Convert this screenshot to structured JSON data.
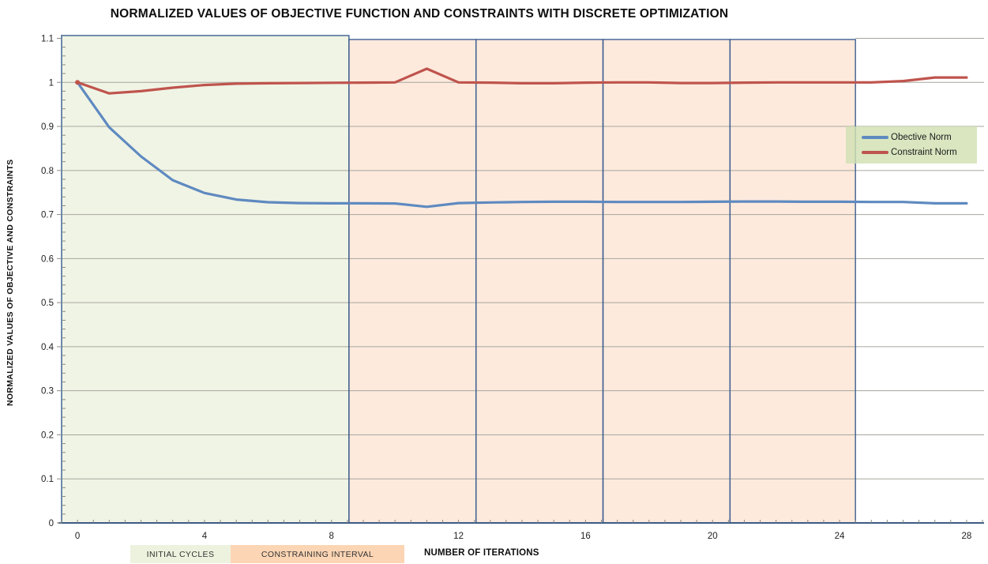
{
  "chart_data": {
    "type": "line",
    "title": "NORMALIZED VALUES OF OBJECTIVE FUNCTION AND CONSTRAINTS WITH DISCRETE OPTIMIZATION",
    "xlabel": "NUMBER OF ITERATIONS",
    "ylabel": "NORMALIZED VALUES OF OBJECTIVE AND CONSTRAINTS",
    "x": [
      0,
      1,
      2,
      3,
      4,
      5,
      6,
      7,
      8,
      9,
      10,
      11,
      12,
      13,
      14,
      15,
      16,
      17,
      18,
      19,
      20,
      21,
      22,
      23,
      24,
      25,
      26,
      27,
      28
    ],
    "series": [
      {
        "name": "Obective Norm",
        "color": "#5f8ac0",
        "values": [
          1.0,
          0.898,
          0.832,
          0.778,
          0.749,
          0.734,
          0.728,
          0.726,
          0.7255,
          0.7255,
          0.725,
          0.7175,
          0.726,
          0.7275,
          0.7285,
          0.729,
          0.729,
          0.7285,
          0.7285,
          0.7285,
          0.729,
          0.7295,
          0.7295,
          0.729,
          0.729,
          0.7285,
          0.7285,
          0.7255,
          0.7255
        ]
      },
      {
        "name": "Constraint Norm",
        "color": "#bf544d",
        "values": [
          1.0,
          0.975,
          0.98,
          0.988,
          0.994,
          0.997,
          0.998,
          0.9985,
          0.999,
          0.9995,
          1.0,
          1.031,
          1.0,
          0.9995,
          0.998,
          0.998,
          0.9995,
          1.0,
          1.0,
          0.9985,
          0.9985,
          0.9995,
          1.0,
          1.0,
          1.0,
          1.0,
          1.003,
          1.011,
          1.011
        ]
      }
    ],
    "xlim": [
      -0.5,
      28.55
    ],
    "ylim": [
      0,
      1.1
    ],
    "x_ticks": [
      "0",
      "4",
      "8",
      "12",
      "16",
      "20",
      "24",
      "28"
    ],
    "x_tick_values": [
      0,
      4,
      8,
      12,
      16,
      20,
      24,
      28
    ],
    "y_ticks": [
      "0",
      "0.1",
      "0.2",
      "0.3",
      "0.4",
      "0.5",
      "0.6",
      "0.7",
      "0.8",
      "0.9",
      "1",
      "1.1"
    ],
    "y_tick_values": [
      0,
      0.1,
      0.2,
      0.3,
      0.4,
      0.5,
      0.6,
      0.7,
      0.8,
      0.9,
      1.0,
      1.1
    ],
    "grid": "horizontal",
    "legend_position": "right-inside",
    "regions": [
      {
        "kind": "initial",
        "x0": -0.5,
        "x1": 8.55,
        "fill": "#f0f4e5",
        "border": "#3d5e8e"
      },
      {
        "kind": "constraining",
        "x0": 8.55,
        "x1": 12.55,
        "fill": "#fdeadd",
        "border": "#3d5e8e"
      },
      {
        "kind": "constraining",
        "x0": 12.55,
        "x1": 16.55,
        "fill": "#fdeadd",
        "border": "#3d5e8e"
      },
      {
        "kind": "constraining",
        "x0": 16.55,
        "x1": 20.55,
        "fill": "#fdeadd",
        "border": "#3d5e8e"
      },
      {
        "kind": "constraining",
        "x0": 20.55,
        "x1": 24.5,
        "fill": "#fdeadd",
        "border": "#3d5e8e"
      }
    ],
    "region_labels": {
      "initial": "INITIAL CYCLES",
      "constraining": "CONSTRAINING INTERVAL"
    }
  },
  "legend": {
    "items": [
      {
        "label": "Obective Norm",
        "color": "#5f8ac0"
      },
      {
        "label": "Constraint Norm",
        "color": "#bf544d"
      }
    ],
    "background": "rgba(209,224,178,0.82)"
  },
  "colors": {
    "gridline": "#a6a69e",
    "y_axis": "#5d7da6",
    "x_axis": "#3c5a84",
    "tick": "#8a8a84",
    "label_text": "#1f1f1f",
    "initial_region_fill": "#f0f4e5",
    "constraining_region_fill": "#fdeadd",
    "region_border": "#3d5e8e",
    "footer_initial_bg": "#edf2de",
    "footer_constraining_bg": "#fcd5b4"
  }
}
